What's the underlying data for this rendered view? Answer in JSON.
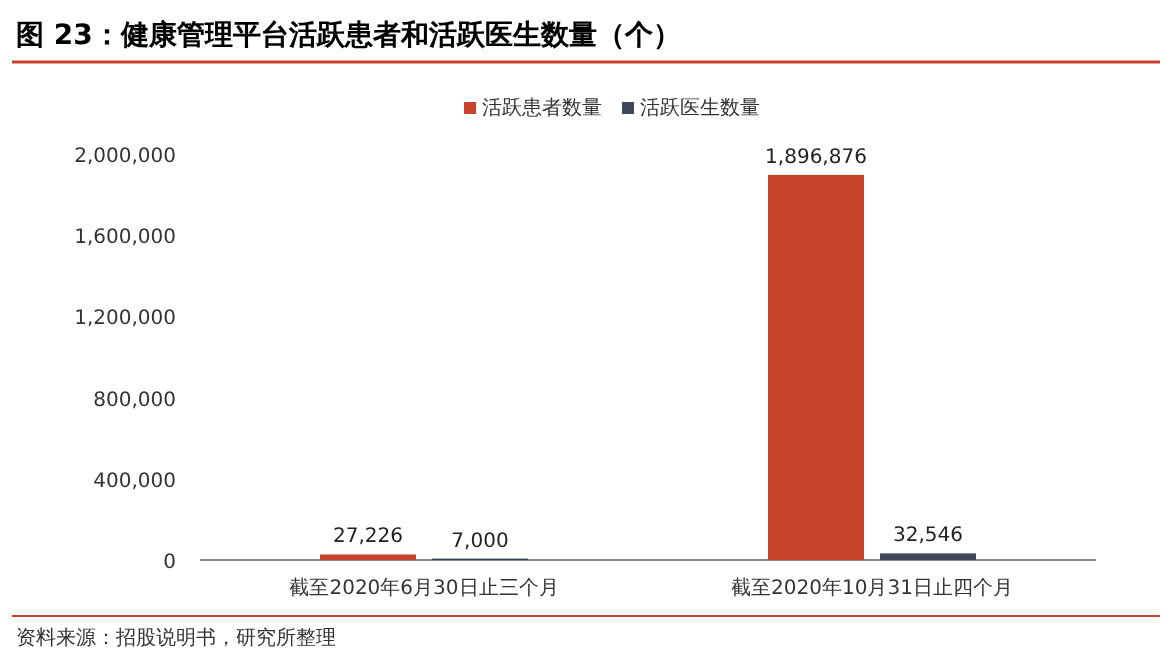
{
  "chart_data": {
    "type": "bar",
    "title": "图 23：健康管理平台活跃患者和活跃医生数量（个）",
    "categories": [
      "截至2020年6月30日止三个月",
      "截至2020年10月31日止四个月"
    ],
    "series": [
      {
        "name": "活跃患者数量",
        "color": "#c9432a",
        "values": [
          27226,
          1896876
        ],
        "value_labels": [
          "27,226",
          "1,896,876"
        ]
      },
      {
        "name": "活跃医生数量",
        "color": "#3e4859",
        "values": [
          7000,
          32546
        ],
        "value_labels": [
          "7,000",
          "32,546"
        ]
      }
    ],
    "ylim": [
      0,
      2000000
    ],
    "yticks": [
      0,
      {
        "value": 400000,
        "label": "400,000"
      },
      {
        "value": 800000,
        "label": "800,000"
      },
      {
        "value": 1200000,
        "label": "1,200,000"
      },
      {
        "value": 1600000,
        "label": "1,600,000"
      },
      {
        "value": 2000000,
        "label": "2,000,000"
      }
    ],
    "legend": "top",
    "grid": false,
    "annotations": [
      "资料来源：招股说明书，研究所整理"
    ]
  }
}
